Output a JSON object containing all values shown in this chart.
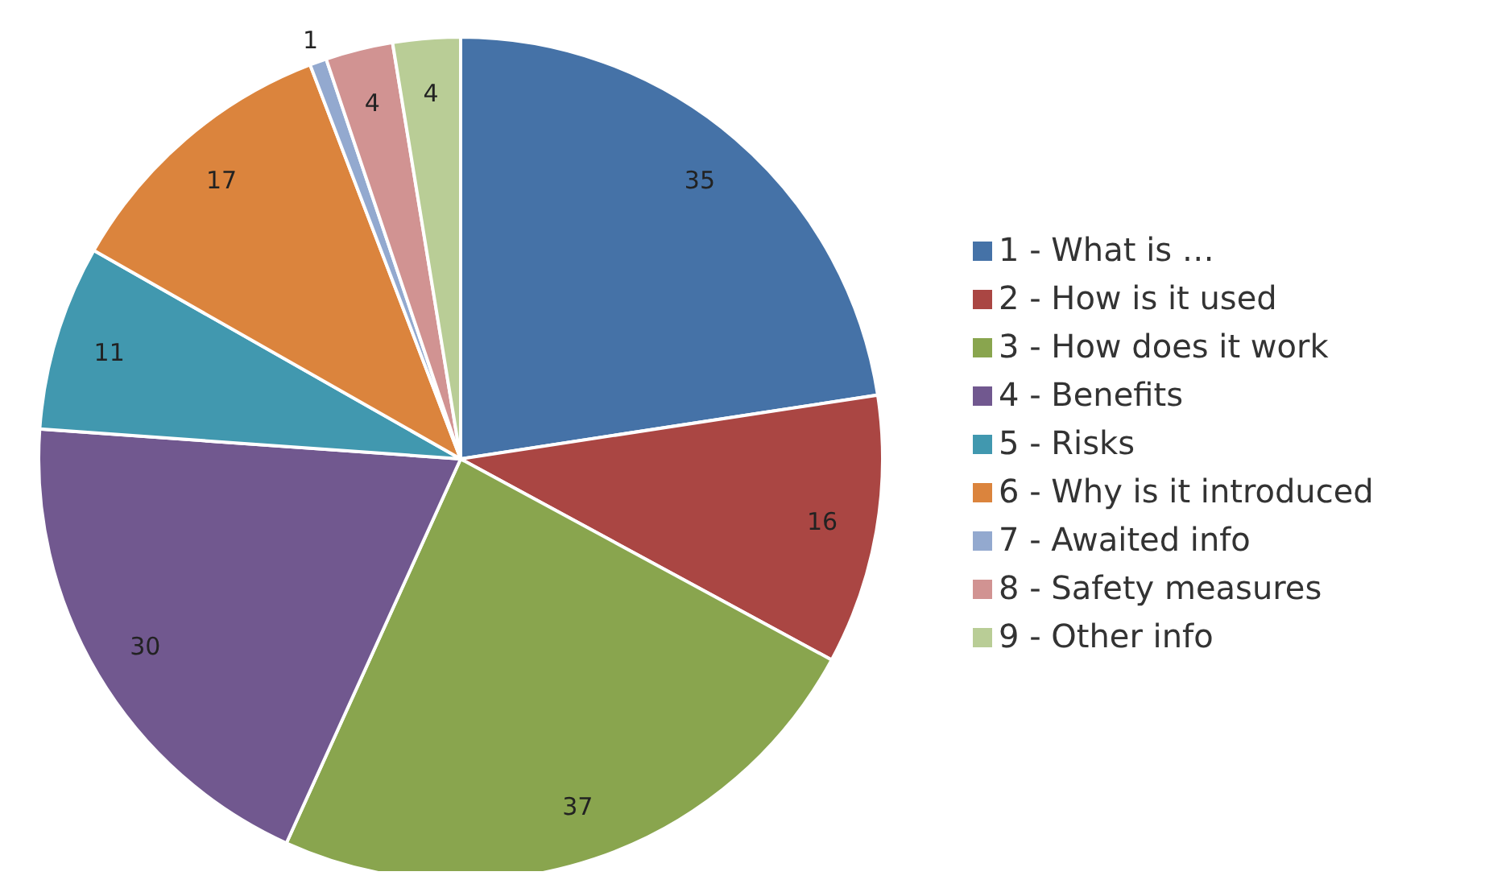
{
  "chart_data": {
    "type": "pie",
    "categories": [
      "1 - What is …",
      "2 - How is it used",
      "3 - How does it work",
      "4 - Benefits",
      "5 - Risks",
      "6 - Why is it introduced",
      "7 - Awaited info",
      "8 - Safety measures",
      "9 - Other info"
    ],
    "values": [
      35,
      16,
      37,
      30,
      11,
      17,
      1,
      4,
      4
    ],
    "colors": [
      "#4572a7",
      "#aa4643",
      "#89a54e",
      "#71588f",
      "#4198af",
      "#db843d",
      "#93a9cf",
      "#d19392",
      "#b9cd96"
    ],
    "data_labels": true,
    "legend": "right"
  }
}
